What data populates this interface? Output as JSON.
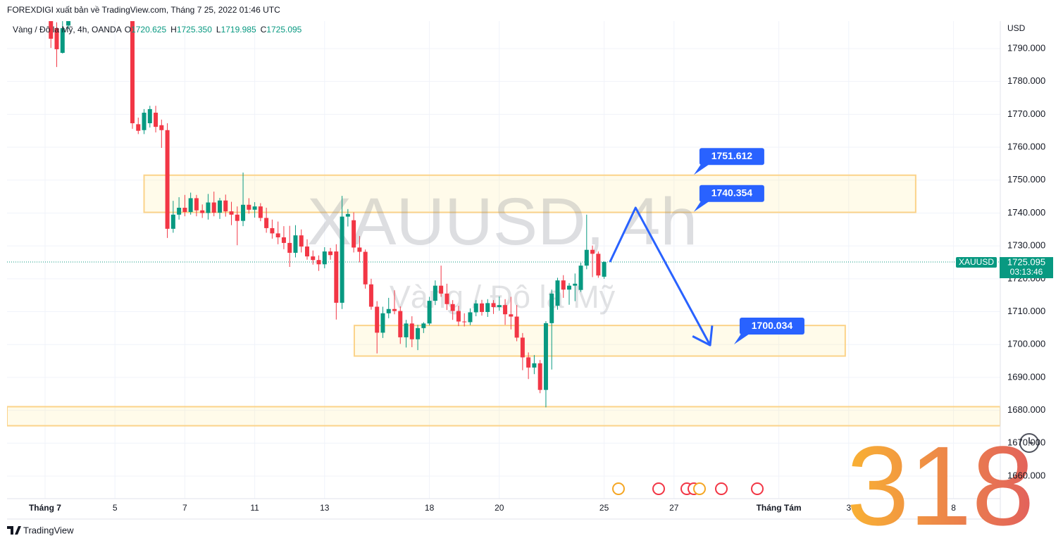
{
  "header": {
    "publisher": "FOREXDIGI xuất bản về TradingView.com, Tháng 7 25, 2022 01:46 UTC",
    "brand": "TradingView"
  },
  "chart_data": {
    "type": "candlestick",
    "symbol_line": "Vàng / Đô la Mỹ, 4h, OANDA",
    "ohlc_legend": [
      {
        "key": "O",
        "text": "1720.625"
      },
      {
        "key": "H",
        "text": "1725.350"
      },
      {
        "key": "L",
        "text": "1719.985"
      },
      {
        "key": "C",
        "text": "1725.095"
      }
    ],
    "watermark": "XAUUSD, 4h",
    "watermark_sub": "Vàng / Đô la Mỹ",
    "currency": "USD",
    "up_color": "#089981",
    "down_color": "#f23645",
    "x": [
      1,
      2,
      3,
      4,
      15,
      16,
      17,
      18,
      19,
      20,
      21,
      22,
      23,
      24,
      25,
      26,
      27,
      28,
      29,
      30,
      31,
      32,
      33,
      34,
      35,
      36,
      37,
      38,
      39,
      40,
      41,
      42,
      43,
      44,
      45,
      46,
      47,
      48,
      49,
      50,
      51,
      52,
      53,
      54,
      55,
      56,
      57,
      58,
      59,
      60,
      61,
      62,
      63,
      64,
      65,
      66,
      67,
      68,
      69,
      70,
      71,
      72,
      73,
      74,
      75,
      76,
      77,
      78,
      79,
      80,
      81,
      82,
      83,
      84,
      85,
      86,
      87,
      88,
      89,
      90,
      91,
      92,
      93,
      94,
      95,
      96
    ],
    "open": [
      1800,
      1796.2,
      1788.7,
      1797,
      1802,
      1767,
      1765.2,
      1767.3,
      1770.5,
      1766.7,
      1765.2,
      1735.2,
      1739.5,
      1741.6,
      1740.3,
      1744.5,
      1740.8,
      1740,
      1743.2,
      1740.1,
      1743.8,
      1740.5,
      1739.5,
      1737.6,
      1742.5,
      1741,
      1742,
      1738.5,
      1735.4,
      1733.8,
      1732.6,
      1730.9,
      1727.9,
      1733.2,
      1729.8,
      1726.8,
      1725.7,
      1724.4,
      1728.3,
      1728.3,
      1712.7,
      1738.9,
      1737.8,
      1729.5,
      1728.2,
      1718.3,
      1711.5,
      1703.6,
      1709.5,
      1710.8,
      1710.2,
      1702.2,
      1706.4,
      1701.6,
      1705,
      1706.4,
      1713.3,
      1717.9,
      1715.5,
      1712.3,
      1710.2,
      1707,
      1706.8,
      1709.8,
      1712.5,
      1709.9,
      1712.6,
      1711.4,
      1712,
      1709.2,
      1708.5,
      1702.1,
      1696.1,
      1693,
      1694.3,
      1686.2,
      1706.5,
      1711.8,
      1719.5,
      1716.7,
      1717.9,
      1716.6,
      1724,
      1728.8,
      1727.6,
      1720.625
    ],
    "high": [
      1802,
      1798,
      1799,
      1803,
      1805,
      1769,
      1771.6,
      1772.6,
      1772.6,
      1768.4,
      1767.3,
      1743.7,
      1744.8,
      1745.5,
      1746.2,
      1745.5,
      1742.6,
      1745.8,
      1746.5,
      1744.6,
      1745.6,
      1743.4,
      1742,
      1752.3,
      1744.5,
      1743.3,
      1743,
      1741.6,
      1738,
      1737.4,
      1736,
      1736.1,
      1736.3,
      1735,
      1732,
      1728.6,
      1727.1,
      1729.6,
      1729.4,
      1730.5,
      1745.2,
      1741.2,
      1740.2,
      1733,
      1728.9,
      1720,
      1713.2,
      1711.5,
      1714.2,
      1716.5,
      1711.6,
      1707.5,
      1708.6,
      1706,
      1706.8,
      1714.5,
      1719.5,
      1724,
      1718.5,
      1713.5,
      1711.8,
      1709.5,
      1711,
      1713.5,
      1713.6,
      1713.8,
      1713.5,
      1714.6,
      1713.8,
      1714.5,
      1712,
      1703.5,
      1697.6,
      1696.8,
      1695.3,
      1707.1,
      1716.7,
      1720.3,
      1721.1,
      1718.7,
      1721.6,
      1724.9,
      1739.5,
      1730.1,
      1728.3,
      1725.35
    ],
    "low": [
      1790.2,
      1784.4,
      1788.5,
      1796,
      1765.6,
      1764,
      1764,
      1766,
      1764.5,
      1759.8,
      1732.4,
      1734,
      1738,
      1739,
      1739.5,
      1739,
      1738.5,
      1738,
      1739,
      1738.2,
      1738.9,
      1736.3,
      1730.2,
      1736,
      1739.8,
      1738.6,
      1737.5,
      1734,
      1732.2,
      1730.5,
      1729,
      1723.6,
      1726.5,
      1728,
      1725.8,
      1724.3,
      1722.4,
      1723.2,
      1725.8,
      1707.6,
      1710.8,
      1735.9,
      1728,
      1725,
      1717,
      1710.6,
      1697.3,
      1702,
      1708,
      1709.2,
      1700.2,
      1699.1,
      1699.2,
      1698.3,
      1703.5,
      1705.8,
      1712,
      1714.5,
      1710.5,
      1707.5,
      1705.6,
      1705.5,
      1705.9,
      1708.6,
      1708.8,
      1708.4,
      1709.3,
      1710.3,
      1706,
      1704.6,
      1701,
      1692.2,
      1689.5,
      1691,
      1685.2,
      1680.9,
      1692.4,
      1710.6,
      1714.2,
      1712.1,
      1713.2,
      1716,
      1722.9,
      1720.5,
      1720.3,
      1719.985
    ],
    "close": [
      1793,
      1789.8,
      1796.2,
      1800,
      1767.3,
      1765,
      1770.5,
      1771.6,
      1766.2,
      1765.2,
      1735.2,
      1739.5,
      1741.6,
      1740.3,
      1744.5,
      1740.8,
      1740,
      1743.2,
      1740.1,
      1743.8,
      1740.5,
      1739.5,
      1737.6,
      1742.5,
      1741,
      1742,
      1738.5,
      1735.4,
      1733.8,
      1732.6,
      1730.9,
      1727.9,
      1733.2,
      1729.8,
      1726.8,
      1725.7,
      1724.4,
      1728.3,
      1727.2,
      1712.7,
      1738.9,
      1739.7,
      1729.5,
      1728.2,
      1718.3,
      1711.5,
      1703.6,
      1709.5,
      1710.8,
      1710.2,
      1702.2,
      1706.4,
      1701.6,
      1705,
      1706.4,
      1713.3,
      1717.9,
      1715.5,
      1712.3,
      1710.2,
      1707,
      1706.8,
      1709.8,
      1712.5,
      1709.9,
      1712.6,
      1711.4,
      1712,
      1709.2,
      1708.5,
      1702.1,
      1696.1,
      1693,
      1694.3,
      1686.2,
      1706.5,
      1715.5,
      1719.5,
      1716.7,
      1717.9,
      1718.5,
      1724,
      1728.8,
      1727.6,
      1721,
      1725.095
    ],
    "xlim": [
      -6.53,
      164.03
    ],
    "ylim": [
      1653.14,
      1798.35
    ],
    "xticks": [
      {
        "value": 0,
        "label": "Tháng 7"
      },
      {
        "value": 12,
        "label": "5"
      },
      {
        "value": 24,
        "label": "7"
      },
      {
        "value": 36,
        "label": "11"
      },
      {
        "value": 48,
        "label": "13"
      },
      {
        "value": 66,
        "label": "18"
      },
      {
        "value": 78,
        "label": "20"
      },
      {
        "value": 96,
        "label": "25"
      },
      {
        "value": 108,
        "label": "27"
      },
      {
        "value": 126,
        "label": "Tháng Tám"
      },
      {
        "value": 138,
        "label": "3"
      },
      {
        "value": 156,
        "label": "8"
      }
    ],
    "yticks": [
      {
        "value": 1660,
        "label": "1660.000"
      },
      {
        "value": 1670,
        "label": "1670.000"
      },
      {
        "value": 1680,
        "label": "1680.000"
      },
      {
        "value": 1690,
        "label": "1690.000"
      },
      {
        "value": 1700,
        "label": "1700.000"
      },
      {
        "value": 1710,
        "label": "1710.000"
      },
      {
        "value": 1720,
        "label": "1720.000"
      },
      {
        "value": 1730,
        "label": "1730.000"
      },
      {
        "value": 1740,
        "label": "1740.000"
      },
      {
        "value": 1750,
        "label": "1750.000"
      },
      {
        "value": 1760,
        "label": "1760.000"
      },
      {
        "value": 1770,
        "label": "1770.000"
      },
      {
        "value": 1780,
        "label": "1780.000"
      },
      {
        "value": 1790,
        "label": "1790.000"
      }
    ],
    "grid": true,
    "last_price": {
      "symbol": "XAUUSD",
      "value": 1725.095,
      "countdown": "03:13:46"
    },
    "zone_color": "#fbd38a",
    "zones": [
      {
        "x0": 17.0,
        "x1": 149.5,
        "low": 1740.2,
        "high": 1751.5
      },
      {
        "x0": 53.1,
        "x1": 137.4,
        "low": 1696.5,
        "high": 1705.8
      },
      {
        "low": 1675.3,
        "high": 1681.1
      }
    ],
    "arrow": {
      "color": "#2962ff",
      "x": [
        97,
        101.4,
        114.2
      ],
      "y": [
        1725.1,
        1741.6,
        1699.8
      ]
    },
    "callouts": [
      {
        "value": 1751.612,
        "x": 111.4
      },
      {
        "value": 1740.354,
        "x": 111.4
      },
      {
        "value": 1700.034,
        "x": 118.3
      }
    ],
    "badge": "318"
  }
}
